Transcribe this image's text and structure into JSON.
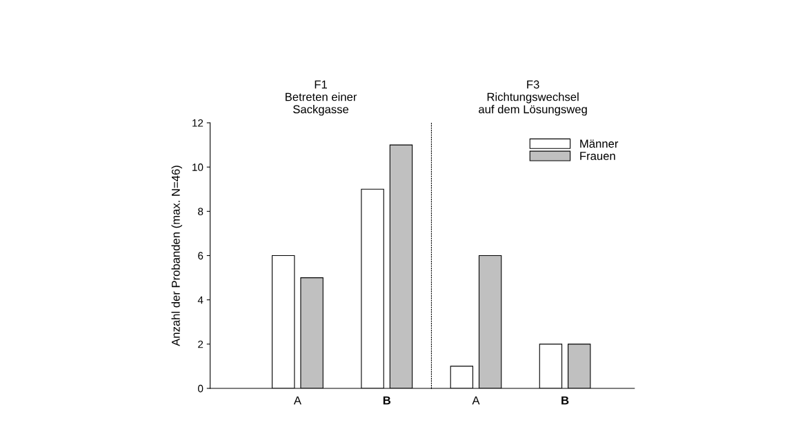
{
  "chart_data": [
    {
      "type": "bar",
      "title": "F1\nBetreten einer\nSackgasse",
      "ylabel": "Anzahl der Probanden (max. N=46)",
      "categories": [
        "A",
        "B"
      ],
      "series": [
        {
          "color": "#ffffff",
          "values": [
            6,
            9
          ]
        },
        {
          "color": "#c0c0c0",
          "values": [
            5,
            11
          ]
        }
      ],
      "ylim": [
        0,
        12
      ],
      "yticks": [
        0,
        2,
        4,
        6,
        8,
        10,
        12
      ],
      "grid": false,
      "legend": false
    },
    {
      "type": "bar",
      "title": "F3\nRichtungswechsel\nauf dem Lösungsweg",
      "categories": [
        "A",
        "B"
      ],
      "series": [
        {
          "name": "Männer",
          "color": "#ffffff",
          "values": [
            1,
            2
          ]
        },
        {
          "name": "Frauen",
          "color": "#c0c0c0",
          "values": [
            6,
            2
          ]
        }
      ],
      "ylim": [
        0,
        12
      ],
      "yticks": [
        0,
        2,
        4,
        6,
        8,
        10,
        12
      ],
      "tick_labels": "x",
      "grid": false,
      "legend": "top right"
    }
  ]
}
